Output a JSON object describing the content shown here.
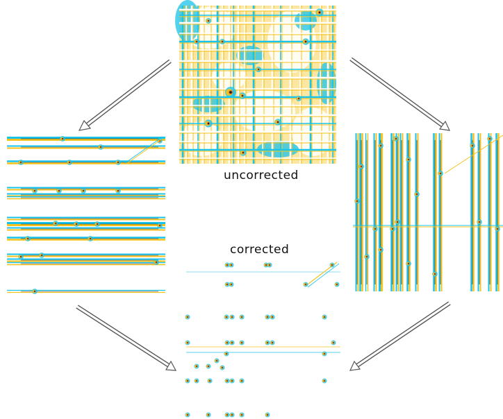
{
  "labels": {
    "uncorrected": "uncorrected",
    "corrected": "corrected"
  },
  "panels": [
    {
      "id": "uncorrected",
      "pattern": "grid-dense"
    },
    {
      "id": "row-corrected",
      "pattern": "horizontal-streaks"
    },
    {
      "id": "column-corrected",
      "pattern": "vertical-streaks"
    },
    {
      "id": "fully-corrected",
      "pattern": "sparse-peaks"
    }
  ],
  "colors": {
    "positive": "#f6c21b",
    "negative": "#19c3ea",
    "peak": "#1a1a1a",
    "hot": "#e0701a",
    "arrow_stroke": "#555555"
  },
  "arrows": [
    "uncorrected-to-row-corrected",
    "uncorrected-to-column-corrected",
    "row-corrected-to-fully-corrected",
    "column-corrected-to-fully-corrected"
  ]
}
